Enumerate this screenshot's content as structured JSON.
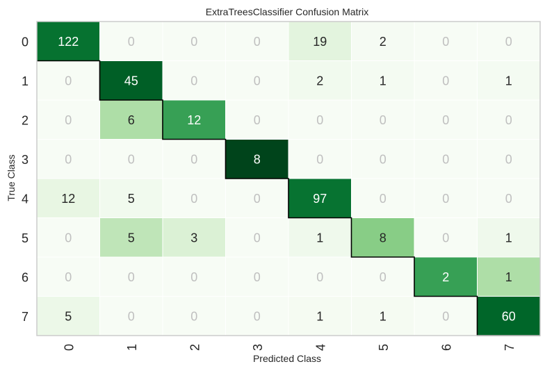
{
  "chart_data": {
    "type": "heatmap",
    "title": "ExtraTreesClassifier Confusion Matrix",
    "xlabel": "Predicted Class",
    "ylabel": "True Class",
    "x_categories": [
      "0",
      "1",
      "2",
      "3",
      "4",
      "5",
      "6",
      "7"
    ],
    "y_categories": [
      "0",
      "1",
      "2",
      "3",
      "4",
      "5",
      "6",
      "7"
    ],
    "matrix": [
      [
        122,
        0,
        0,
        0,
        19,
        2,
        0,
        0
      ],
      [
        0,
        45,
        0,
        0,
        2,
        1,
        0,
        1
      ],
      [
        0,
        6,
        12,
        0,
        0,
        0,
        0,
        0
      ],
      [
        0,
        0,
        0,
        8,
        0,
        0,
        0,
        0
      ],
      [
        12,
        5,
        0,
        0,
        97,
        0,
        0,
        0
      ],
      [
        0,
        5,
        3,
        0,
        1,
        8,
        0,
        1
      ],
      [
        0,
        0,
        0,
        0,
        0,
        0,
        2,
        1
      ],
      [
        5,
        0,
        0,
        0,
        1,
        1,
        0,
        60
      ]
    ],
    "colormap": "Greens",
    "diagonal_outline": true,
    "grid": false
  },
  "colors": {
    "zero_text": "#bfbfbf",
    "dark_text": "#262626",
    "light_text": "#ffffff",
    "cell_border": "#ffffff",
    "frame": "#cccccc",
    "diagonal_line": "#000000"
  }
}
